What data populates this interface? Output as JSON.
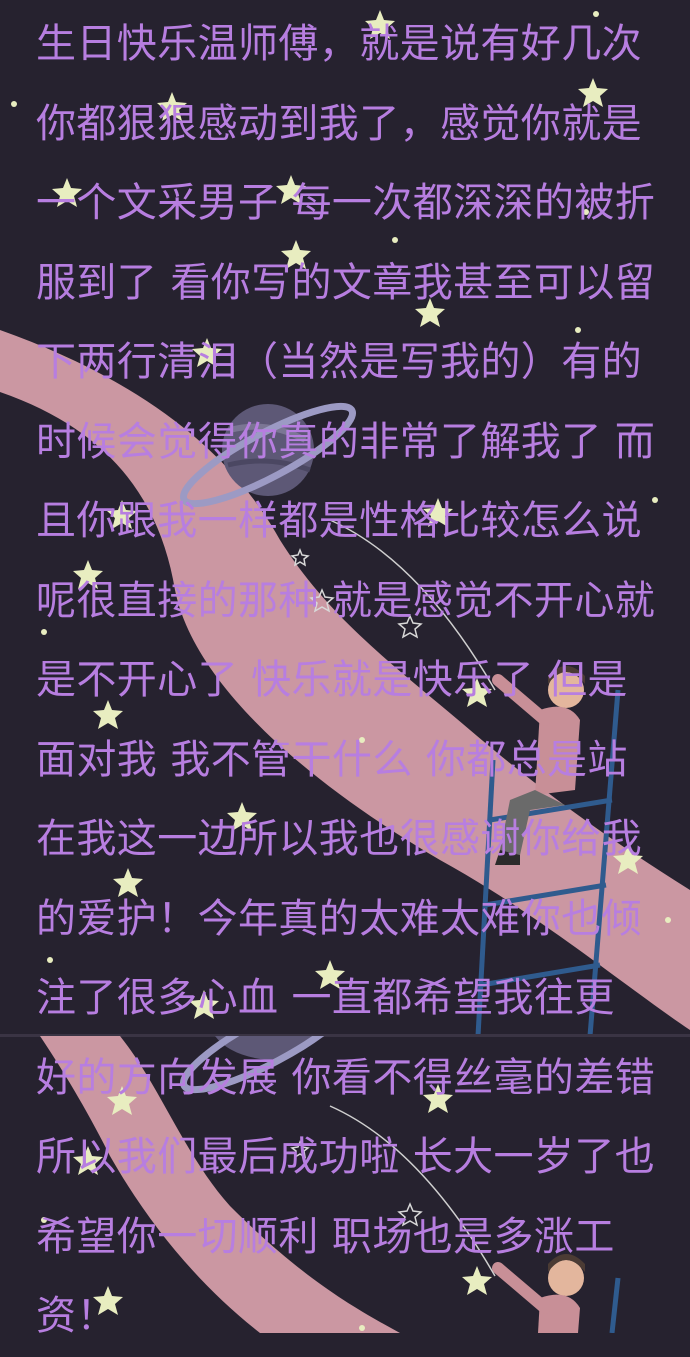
{
  "message": {
    "lines": [
      "生日快乐温师傅，就是说有好几次",
      "你都狠狠感动到我了，感觉你就是",
      "一个文采男子 每一次都深深的被折",
      "服到了 看你写的文章我甚至可以留",
      "下两行清泪（当然是写我的）有的",
      "时候会觉得你真的非常了解我了 而",
      "且你跟我一样都是性格比较怎么说",
      "呢很直接的那种 就是感觉不开心就",
      "是不开心了 快乐就是快乐了 但是",
      "面对我 我不管干什么 你都总是站",
      "在我这一边所以我也很感谢你给我",
      "的爱护！今年真的太难太难你也倾",
      "注了很多心血 一直都希望我往更",
      "好的方向发展 你看不得丝毫的差错",
      "所以我们最后成功啦 长大一岁了也",
      "希望你一切顺利 职场也是多涨工",
      "资！"
    ]
  },
  "colors": {
    "background": "#26222f",
    "text": "#b77ee0",
    "ribbon": "#d9a2ad",
    "star": "#e8edc0"
  }
}
